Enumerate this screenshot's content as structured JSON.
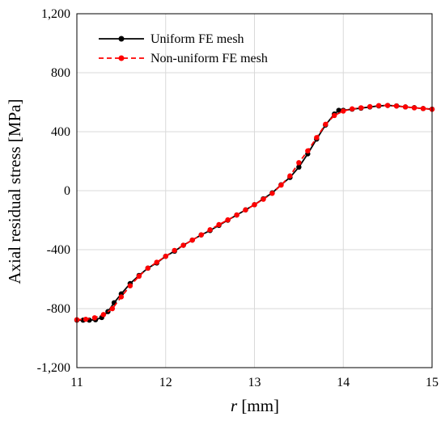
{
  "chart_data": {
    "type": "line",
    "title": "",
    "xlabel_italic": "r",
    "xlabel_rest": " [mm]",
    "ylabel": "Axial residual stress [MPa]",
    "xlim": [
      11,
      15
    ],
    "ylim": [
      -1200,
      1200
    ],
    "xticks": [
      11,
      12,
      13,
      14,
      15
    ],
    "yticks": [
      -1200,
      -800,
      -400,
      0,
      400,
      800,
      1200
    ],
    "ytick_labels": [
      "-1,200",
      "-800",
      "-400",
      "0",
      "400",
      "800",
      "1,200"
    ],
    "grid": true,
    "legend_position": "top-left",
    "series": [
      {
        "name": "Uniform FE mesh",
        "color": "#000000",
        "dash": "solid",
        "x": [
          11.0,
          11.07,
          11.14,
          11.21,
          11.28,
          11.35,
          11.42,
          11.5,
          11.6,
          11.7,
          11.8,
          11.9,
          12.0,
          12.1,
          12.2,
          12.3,
          12.4,
          12.5,
          12.6,
          12.7,
          12.8,
          12.9,
          13.0,
          13.1,
          13.2,
          13.3,
          13.4,
          13.5,
          13.6,
          13.7,
          13.8,
          13.9,
          13.95,
          14.0,
          14.1,
          14.2,
          14.3,
          14.4,
          14.5,
          14.6,
          14.7,
          14.8,
          14.9,
          15.0
        ],
        "y": [
          -878,
          -878,
          -878,
          -875,
          -860,
          -820,
          -760,
          -700,
          -630,
          -575,
          -525,
          -490,
          -445,
          -410,
          -370,
          -335,
          -300,
          -270,
          -235,
          -200,
          -165,
          -130,
          -95,
          -55,
          -15,
          40,
          90,
          160,
          250,
          350,
          445,
          520,
          545,
          545,
          553,
          560,
          568,
          575,
          578,
          575,
          568,
          563,
          557,
          553
        ]
      },
      {
        "name": "Non-uniform FE mesh",
        "color": "#ff0000",
        "dash": "dashed",
        "x": [
          11.0,
          11.1,
          11.2,
          11.3,
          11.4,
          11.5,
          11.6,
          11.7,
          11.8,
          11.9,
          12.0,
          12.1,
          12.2,
          12.3,
          12.4,
          12.5,
          12.6,
          12.7,
          12.8,
          12.9,
          13.0,
          13.1,
          13.2,
          13.3,
          13.4,
          13.5,
          13.6,
          13.7,
          13.8,
          13.9,
          14.0,
          14.1,
          14.2,
          14.3,
          14.4,
          14.5,
          14.6,
          14.7,
          14.8,
          14.9,
          15.0
        ],
        "y": [
          -875,
          -872,
          -862,
          -840,
          -800,
          -720,
          -645,
          -580,
          -525,
          -485,
          -445,
          -405,
          -370,
          -335,
          -300,
          -265,
          -230,
          -198,
          -165,
          -130,
          -95,
          -58,
          -18,
          38,
          100,
          190,
          270,
          360,
          450,
          510,
          540,
          555,
          562,
          570,
          577,
          578,
          574,
          568,
          562,
          557,
          552
        ]
      }
    ]
  }
}
